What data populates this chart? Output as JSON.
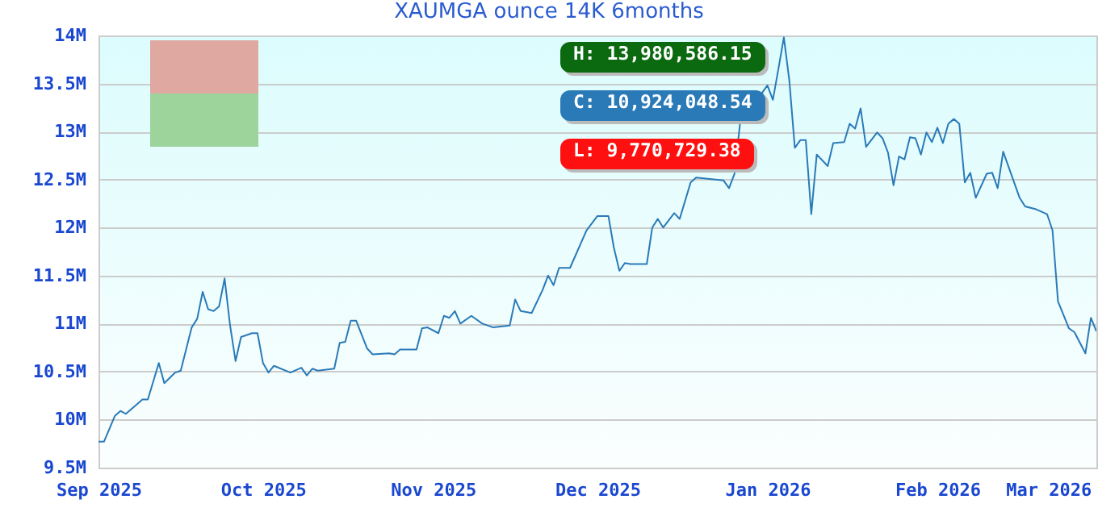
{
  "chart_data": {
    "type": "line",
    "title": "XAUMGA ounce 14K 6months",
    "x": [
      "2025-09-01",
      "2025-09-02",
      "2025-09-04",
      "2025-09-05",
      "2025-09-06",
      "2025-09-08",
      "2025-09-09",
      "2025-09-10",
      "2025-09-12",
      "2025-09-13",
      "2025-09-15",
      "2025-09-16",
      "2025-09-18",
      "2025-09-19",
      "2025-09-20",
      "2025-09-21",
      "2025-09-22",
      "2025-09-23",
      "2025-09-24",
      "2025-09-25",
      "2025-09-26",
      "2025-09-27",
      "2025-09-29",
      "2025-09-30",
      "2025-10-01",
      "2025-10-02",
      "2025-10-03",
      "2025-10-06",
      "2025-10-08",
      "2025-10-09",
      "2025-10-10",
      "2025-10-11",
      "2025-10-14",
      "2025-10-15",
      "2025-10-16",
      "2025-10-17",
      "2025-10-18",
      "2025-10-20",
      "2025-10-21",
      "2025-10-24",
      "2025-10-25",
      "2025-10-26",
      "2025-10-29",
      "2025-10-30",
      "2025-10-31",
      "2025-11-02",
      "2025-11-03",
      "2025-11-04",
      "2025-11-05",
      "2025-11-06",
      "2025-11-08",
      "2025-11-10",
      "2025-11-12",
      "2025-11-15",
      "2025-11-16",
      "2025-11-17",
      "2025-11-19",
      "2025-11-21",
      "2025-11-22",
      "2025-11-23",
      "2025-11-24",
      "2025-11-26",
      "2025-11-29",
      "2025-12-01",
      "2025-12-03",
      "2025-12-04",
      "2025-12-05",
      "2025-12-06",
      "2025-12-07",
      "2025-12-10",
      "2025-12-11",
      "2025-12-12",
      "2025-12-13",
      "2025-12-15",
      "2025-12-16",
      "2025-12-18",
      "2025-12-19",
      "2025-12-24",
      "2025-12-25",
      "2025-12-26",
      "2025-12-27",
      "2026-01-01",
      "2026-01-02",
      "2026-01-03",
      "2026-01-04",
      "2026-01-05",
      "2026-01-06",
      "2026-01-07",
      "2026-01-08",
      "2026-01-09",
      "2026-01-10",
      "2026-01-12",
      "2026-01-13",
      "2026-01-15",
      "2026-01-16",
      "2026-01-17",
      "2026-01-18",
      "2026-01-19",
      "2026-01-21",
      "2026-01-22",
      "2026-01-23",
      "2026-01-24",
      "2026-01-25",
      "2026-01-26",
      "2026-01-27",
      "2026-01-28",
      "2026-01-29",
      "2026-01-30",
      "2026-01-31",
      "2026-02-01",
      "2026-02-02",
      "2026-02-03",
      "2026-02-04",
      "2026-02-05",
      "2026-02-06",
      "2026-02-07",
      "2026-02-08",
      "2026-02-10",
      "2026-02-11",
      "2026-02-12",
      "2026-02-13",
      "2026-02-16",
      "2026-02-17",
      "2026-02-19",
      "2026-02-21",
      "2026-02-22",
      "2026-02-23",
      "2026-02-25",
      "2026-02-26",
      "2026-02-28",
      "2026-03-01",
      "2026-03-02"
    ],
    "series": [
      {
        "color": "#2a7ab8",
        "values": [
          9770000,
          9770000,
          10040000,
          10090000,
          10060000,
          10160000,
          10210000,
          10210000,
          10590000,
          10380000,
          10490000,
          10510000,
          10960000,
          11050000,
          11330000,
          11150000,
          11130000,
          11180000,
          11470000,
          10980000,
          10610000,
          10860000,
          10900000,
          10900000,
          10590000,
          10490000,
          10560000,
          10490000,
          10540000,
          10460000,
          10530000,
          10510000,
          10530000,
          10800000,
          10810000,
          11030000,
          11030000,
          10740000,
          10680000,
          10690000,
          10680000,
          10730000,
          10730000,
          10950000,
          10960000,
          10900000,
          11080000,
          11060000,
          11130000,
          11000000,
          11080000,
          11000000,
          10960000,
          10980000,
          11250000,
          11130000,
          11110000,
          11350000,
          11500000,
          11400000,
          11580000,
          11580000,
          11970000,
          12120000,
          12120000,
          11790000,
          11550000,
          11630000,
          11620000,
          11620000,
          12000000,
          12090000,
          12000000,
          12150000,
          12090000,
          12470000,
          12520000,
          12490000,
          12410000,
          12560000,
          13080000,
          13480000,
          13330000,
          13650000,
          13980000,
          13530000,
          12830000,
          12910000,
          12910000,
          12140000,
          12760000,
          12640000,
          12880000,
          12890000,
          13080000,
          13030000,
          13240000,
          12840000,
          12990000,
          12930000,
          12780000,
          12440000,
          12740000,
          12710000,
          12940000,
          12930000,
          12760000,
          12990000,
          12890000,
          13040000,
          12880000,
          13080000,
          13130000,
          13080000,
          12470000,
          12570000,
          12310000,
          12560000,
          12570000,
          12410000,
          12790000,
          12310000,
          12220000,
          12190000,
          12140000,
          11970000,
          11230000,
          10950000,
          10910000,
          10690000,
          11060000,
          10920000
        ]
      }
    ],
    "xlim": [
      "2025-09-01",
      "2026-03-02"
    ],
    "xticks": [
      {
        "value": "2025-09-01",
        "label": "Sep 2025"
      },
      {
        "value": "2025-10-01",
        "label": "Oct 2025"
      },
      {
        "value": "2025-11-01",
        "label": "Nov 2025"
      },
      {
        "value": "2025-12-01",
        "label": "Dec 2025"
      },
      {
        "value": "2026-01-01",
        "label": "Jan 2026"
      },
      {
        "value": "2026-02-01",
        "label": "Feb 2026"
      },
      {
        "value": "2026-03-01",
        "label": "Mar 2026"
      }
    ],
    "ylim": [
      9500000,
      14000000
    ],
    "yticks": [
      {
        "value": 9500000,
        "label": "9.5M"
      },
      {
        "value": 10000000,
        "label": "10M"
      },
      {
        "value": 10500000,
        "label": "10.5M"
      },
      {
        "value": 11000000,
        "label": "11M"
      },
      {
        "value": 11500000,
        "label": "11.5M"
      },
      {
        "value": 12000000,
        "label": "12M"
      },
      {
        "value": 12500000,
        "label": "12.5M"
      },
      {
        "value": 13000000,
        "label": "13M"
      },
      {
        "value": 13500000,
        "label": "13.5M"
      },
      {
        "value": 14000000,
        "label": "14M"
      }
    ],
    "grid": "y",
    "annotations": [
      "H: 13,980,586.15",
      "C: 10,924,048.54",
      "L: 9,770,729.38"
    ]
  }
}
